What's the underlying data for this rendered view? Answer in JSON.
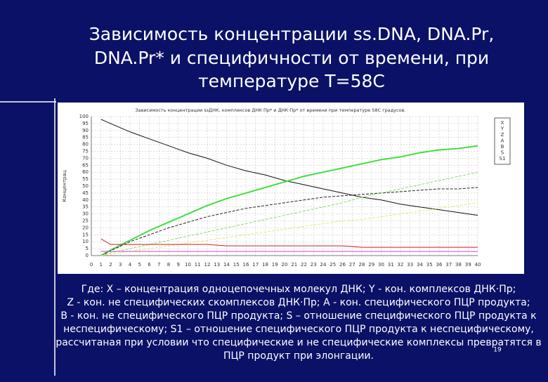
{
  "slide": {
    "title": [
      "Зависимость концентрации ss.DNA, DNA.Pr,",
      "DNA.Pr* и специфичности  от времени, при",
      "температуре T=58C"
    ],
    "caption": [
      "Где: X – концентрация одноцепочечных молекул ДНК; Y - кон. комплексов ДНК·Пр;",
      "Z - кон. не специфических скомплексов ДНК·Пр; A - кон. специфического ПЦР продукта;",
      "B - кон. не специфического ПЦР продукта;    S – отношение специфического ПЦР продукта к",
      "неспецифическому; S1 – отношение специфического ПЦР продукта к неспецифическому,",
      "рассчитаная при условии что специфические и не специфические комплексы превратятся в",
      "ПЦР продукт при элонгации."
    ],
    "number": "19"
  },
  "chart_data": {
    "type": "line",
    "title": "Зависимость концентрации ssДНК, комплексов ДНК·Пр* и ДНК·Пр* от времени при температуре 58С градусов.",
    "y_label": "Концентрац",
    "x": [
      1,
      2,
      4,
      6,
      8,
      10,
      12,
      14,
      16,
      18,
      20,
      22,
      24,
      26,
      28,
      30,
      32,
      34,
      36,
      38,
      40
    ],
    "series": [
      {
        "name": "X",
        "color": "#111111",
        "dash": false,
        "values": [
          98,
          95,
          89,
          84,
          79,
          74,
          70,
          65,
          61,
          58,
          54,
          51,
          48,
          45,
          42,
          40,
          37,
          35,
          33,
          31,
          29
        ]
      },
      {
        "name": "Y",
        "color": "#44dd44",
        "dash": false,
        "values": [
          0,
          4,
          11,
          18,
          24,
          30,
          36,
          41,
          45,
          49,
          53,
          57,
          60,
          63,
          66,
          69,
          71,
          74,
          76,
          77,
          79
        ]
      },
      {
        "name": "Z",
        "color": "#222222",
        "dash": true,
        "values": [
          0,
          3.5,
          10,
          15,
          20,
          24,
          28,
          31,
          34,
          36,
          38,
          40,
          42,
          43,
          44,
          45,
          46,
          47,
          48,
          48,
          49
        ]
      },
      {
        "name": "A",
        "color": "#88dd66",
        "dash": true,
        "values": [
          0,
          2,
          5,
          8,
          11,
          14,
          17,
          20,
          23,
          26,
          29,
          32,
          35,
          38,
          42,
          45,
          48,
          51,
          54,
          57,
          60
        ]
      },
      {
        "name": "B",
        "color": "#e8e870",
        "dash": true,
        "values": [
          0,
          1,
          3,
          5,
          7,
          9,
          11,
          13,
          15,
          17,
          19,
          21,
          23,
          25,
          26,
          28,
          30,
          32,
          34,
          36,
          38
        ]
      },
      {
        "name": "S",
        "color": "#cc2222",
        "dash": false,
        "values": [
          12,
          8,
          8,
          8,
          8,
          8,
          8,
          7,
          7,
          7,
          7,
          7,
          7,
          7,
          6,
          6,
          6,
          6,
          6,
          6,
          6
        ]
      },
      {
        "name": "S1",
        "color": "#cc44cc",
        "dash": false,
        "values": [
          3,
          3,
          3,
          3,
          3,
          3,
          3,
          3,
          3,
          3,
          3,
          3,
          3,
          3,
          3,
          3,
          3,
          3,
          3,
          3,
          3
        ]
      }
    ],
    "xlim": [
      0,
      40
    ],
    "xticks": [
      0,
      1,
      2,
      3,
      4,
      5,
      6,
      7,
      8,
      9,
      10,
      11,
      12,
      13,
      14,
      15,
      16,
      17,
      18,
      19,
      20,
      21,
      22,
      23,
      24,
      25,
      26,
      27,
      28,
      29,
      30,
      31,
      32,
      33,
      34,
      35,
      36,
      37,
      38,
      39,
      40
    ],
    "ylim": [
      0,
      100
    ],
    "yticks": [
      0,
      5,
      10,
      15,
      20,
      25,
      30,
      35,
      40,
      45,
      50,
      55,
      60,
      65,
      70,
      75,
      80,
      85,
      90,
      95,
      100
    ],
    "grid": true
  }
}
